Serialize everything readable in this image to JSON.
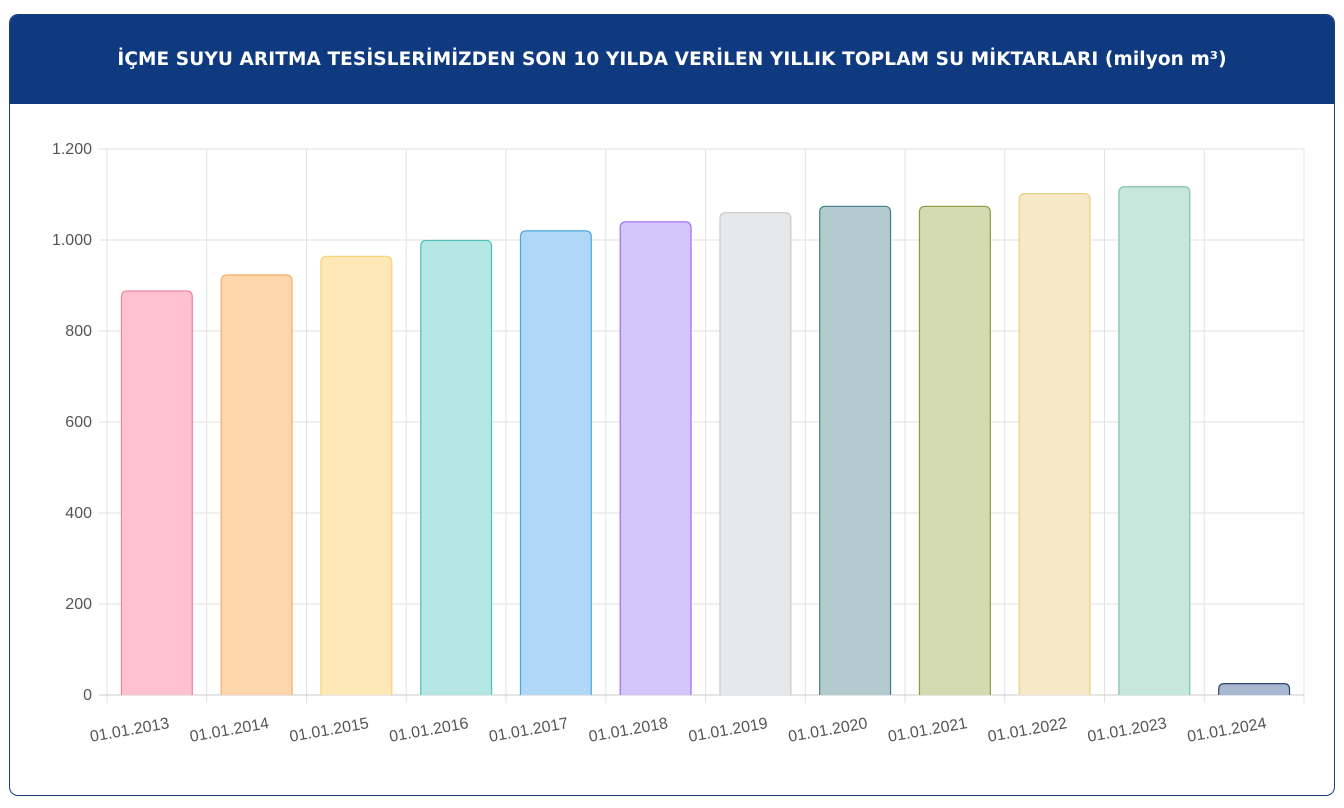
{
  "header": {
    "title": "İÇME SUYU ARITMA TESİSLERİMİZDEN SON 10 YILDA VERİLEN YILLIK TOPLAM SU MİKTARLARI (milyon m³)"
  },
  "chart_data": {
    "type": "bar",
    "title": "İÇME SUYU ARITMA TESİSLERİMİZDEN SON 10 YILDA VERİLEN YILLIK TOPLAM SU MİKTARLARI (milyon m³)",
    "categories": [
      "01.01.2013",
      "01.01.2014",
      "01.01.2015",
      "01.01.2016",
      "01.01.2017",
      "01.01.2018",
      "01.01.2019",
      "01.01.2020",
      "01.01.2021",
      "01.01.2022",
      "01.01.2023",
      "01.01.2024"
    ],
    "values": [
      888,
      923,
      964,
      999,
      1020,
      1040,
      1060,
      1074,
      1074,
      1102,
      1117,
      25
    ],
    "ylim": [
      0,
      1200
    ],
    "yticks": [
      0,
      200,
      400,
      600,
      800,
      1000,
      1200
    ],
    "ytick_labels": [
      "0",
      "200",
      "400",
      "600",
      "800",
      "1.000",
      "1.200"
    ],
    "grid": true,
    "legend": "none",
    "bar_fills": [
      "#ffc0cf",
      "#ffd6ae",
      "#ffe8b8",
      "#b4e6e4",
      "#aed8f6",
      "#d6c5fd",
      "#e7e8ea",
      "#b3cbcf",
      "#d4dbb1",
      "#f7e9c7",
      "#c8e7dc",
      "#a8b8d0"
    ],
    "bar_strokes": [
      "#f0809c",
      "#f5ae66",
      "#f7d27a",
      "#4fc2bf",
      "#4aa8e3",
      "#9b6cf4",
      "#c8c9cc",
      "#3f7e86",
      "#8a9a3c",
      "#e9cf83",
      "#7fc3aa",
      "#2e466f"
    ]
  }
}
